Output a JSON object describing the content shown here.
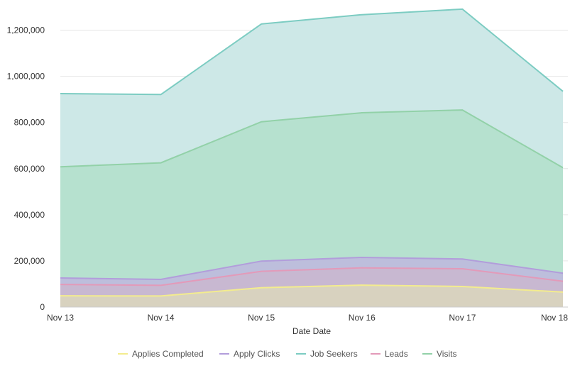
{
  "chart_data": {
    "type": "area",
    "x": [
      "Nov 13",
      "Nov 14",
      "Nov 15",
      "Nov 16",
      "Nov 17",
      "Nov 18"
    ],
    "xlabel": "Date Date",
    "ylabel": "",
    "ylim": [
      0,
      1300000
    ],
    "yticks": [
      0,
      200000,
      400000,
      600000,
      800000,
      1000000,
      1200000
    ],
    "ytick_labels": [
      "0",
      "200,000",
      "400,000",
      "600,000",
      "800,000",
      "1,000,000",
      "1,200,000"
    ],
    "grid": true,
    "legend_position": "bottom",
    "series": [
      {
        "name": "Job Seekers",
        "color": "#7cccc2",
        "fill": "#cde8e7",
        "values": [
          925000,
          921000,
          1227000,
          1267000,
          1291000,
          935000
        ]
      },
      {
        "name": "Visits",
        "color": "#92d1a8",
        "fill": "#b6e1cf",
        "values": [
          608000,
          625000,
          803000,
          842000,
          854000,
          604000
        ]
      },
      {
        "name": "Apply Clicks",
        "color": "#b29ddb",
        "fill": "#bdbedc",
        "values": [
          126000,
          120000,
          199000,
          215000,
          208000,
          147000
        ]
      },
      {
        "name": "Leads",
        "color": "#e39ab9",
        "fill": "#c8b8d1",
        "values": [
          98000,
          94000,
          155000,
          170000,
          166000,
          112000
        ]
      },
      {
        "name": "Applies Completed",
        "color": "#f3ec8e",
        "fill": "#d8d2bf",
        "values": [
          49000,
          48000,
          84000,
          95000,
          89000,
          65000
        ]
      }
    ],
    "legend": [
      "Applies Completed",
      "Apply Clicks",
      "Job Seekers",
      "Leads",
      "Visits"
    ]
  }
}
